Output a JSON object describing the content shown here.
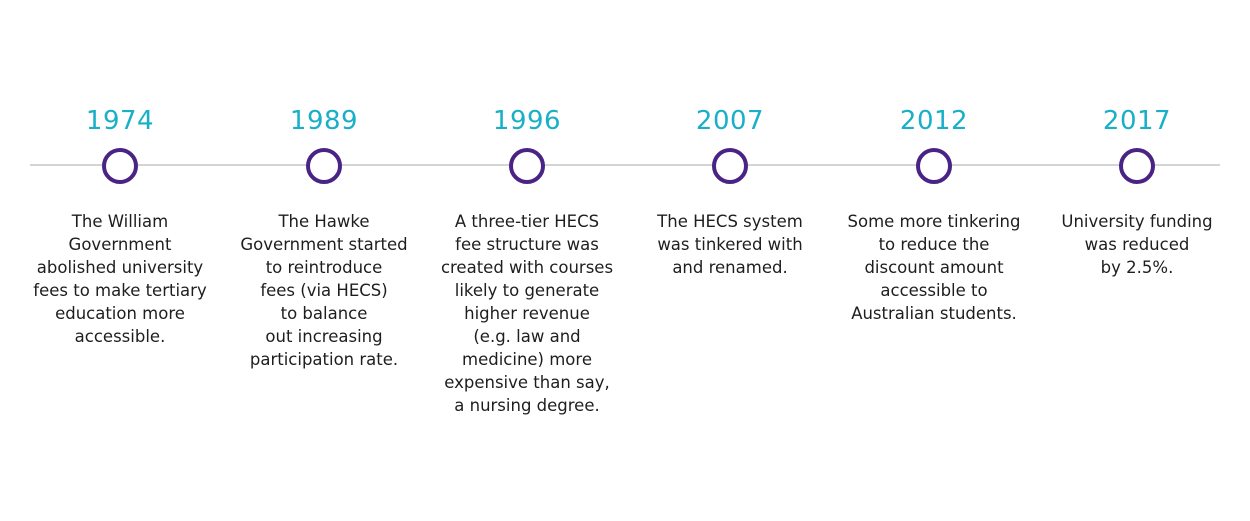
{
  "colors": {
    "year_text": "#1aafc8",
    "marker_ring": "#4a2484",
    "axis_line": "#d4d4d4",
    "body_text": "#1e1e1e"
  },
  "events": [
    {
      "year": "1974",
      "description": "The William\nGovernment\nabolished university\nfees to make tertiary\neducation more\naccessible."
    },
    {
      "year": "1989",
      "description": "The Hawke\nGovernment started\nto reintroduce\nfees (via HECS)\nto balance\nout increasing\nparticipation rate."
    },
    {
      "year": "1996",
      "description": "A three-tier HECS\nfee structure was\ncreated with courses\nlikely to generate\nhigher revenue\n(e.g. law and\nmedicine) more\nexpensive than say,\na nursing degree."
    },
    {
      "year": "2007",
      "description": "The HECS system\nwas tinkered with\nand renamed."
    },
    {
      "year": "2012",
      "description": "Some more tinkering\nto reduce the\ndiscount amount\naccessible to\nAustralian students."
    },
    {
      "year": "2017",
      "description": "University funding\nwas reduced\nby 2.5%."
    }
  ]
}
